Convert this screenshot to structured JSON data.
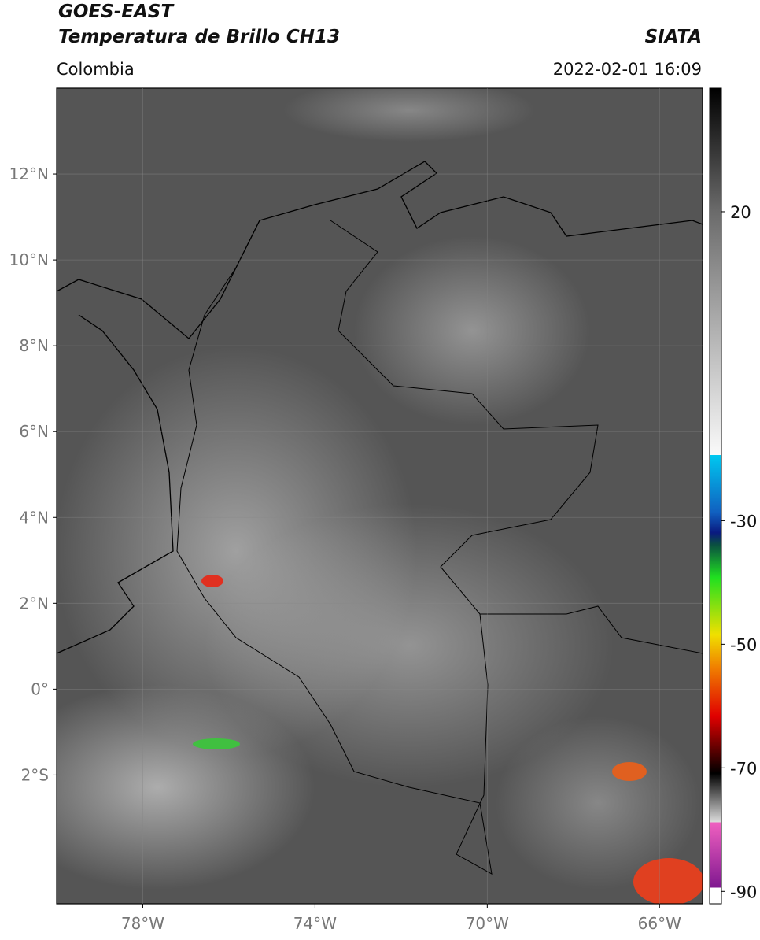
{
  "header": {
    "title": "GOES-EAST",
    "subtitle": "Temperatura de Brillo CH13",
    "source": "SIATA",
    "region": "Colombia",
    "datetime": "2022-02-01 16:09"
  },
  "map": {
    "xlim": [
      -80,
      -65
    ],
    "ylim": [
      -5,
      14
    ],
    "xticks": [
      {
        "value": -78,
        "label": "78°W"
      },
      {
        "value": -74,
        "label": "74°W"
      },
      {
        "value": -70,
        "label": "70°W"
      },
      {
        "value": -66,
        "label": "66°W"
      }
    ],
    "yticks": [
      {
        "value": -2,
        "label": "2°S"
      },
      {
        "value": 0,
        "label": "0°"
      },
      {
        "value": 2,
        "label": "2°N"
      },
      {
        "value": 4,
        "label": "4°N"
      },
      {
        "value": 6,
        "label": "6°N"
      },
      {
        "value": 8,
        "label": "8°N"
      },
      {
        "value": 10,
        "label": "10°N"
      },
      {
        "value": 12,
        "label": "12°N"
      }
    ],
    "grid": true
  },
  "colorbar": {
    "lim": [
      -92,
      40
    ],
    "ticks": [
      20,
      -30,
      -50,
      -70,
      -90
    ]
  }
}
